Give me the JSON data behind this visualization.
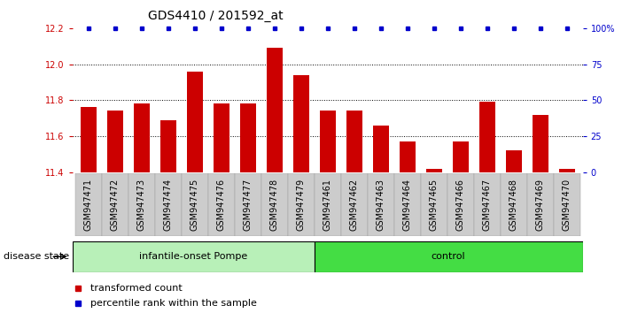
{
  "title": "GDS4410 / 201592_at",
  "samples": [
    "GSM947471",
    "GSM947472",
    "GSM947473",
    "GSM947474",
    "GSM947475",
    "GSM947476",
    "GSM947477",
    "GSM947478",
    "GSM947479",
    "GSM947461",
    "GSM947462",
    "GSM947463",
    "GSM947464",
    "GSM947465",
    "GSM947466",
    "GSM947467",
    "GSM947468",
    "GSM947469",
    "GSM947470"
  ],
  "values": [
    11.76,
    11.74,
    11.78,
    11.69,
    11.96,
    11.78,
    11.78,
    12.09,
    11.94,
    11.74,
    11.74,
    11.66,
    11.57,
    11.42,
    11.57,
    11.79,
    11.52,
    11.72,
    11.42
  ],
  "bar_color": "#cc0000",
  "percentile_color": "#0000cc",
  "ylim_left": [
    11.4,
    12.2
  ],
  "ylim_right": [
    0,
    100
  ],
  "yticks_left": [
    11.4,
    11.6,
    11.8,
    12.0,
    12.2
  ],
  "yticks_right": [
    0,
    25,
    50,
    75,
    100
  ],
  "ytick_labels_right": [
    "0",
    "25",
    "50",
    "75",
    "100%"
  ],
  "groups": [
    {
      "label": "infantile-onset Pompe",
      "start": 0,
      "end": 9,
      "color": "#b8f0b8"
    },
    {
      "label": "control",
      "start": 9,
      "end": 19,
      "color": "#44dd44"
    }
  ],
  "group_label": "disease state",
  "legend_bar_label": "transformed count",
  "legend_dot_label": "percentile rank within the sample",
  "bg_color": "#ffffff",
  "tick_area_color": "#cccccc",
  "dotted_line_color": "#000000",
  "title_fontsize": 10,
  "tick_fontsize": 7,
  "axis_label_color_left": "#cc0000",
  "axis_label_color_right": "#0000cc"
}
